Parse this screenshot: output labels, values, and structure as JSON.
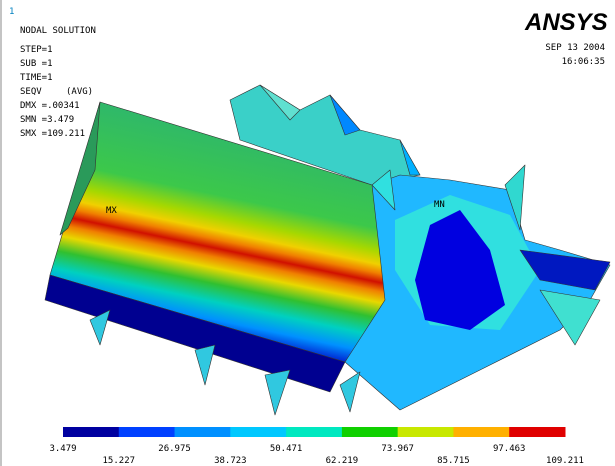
{
  "header": {
    "window_number": "1",
    "title": "NODAL SOLUTION",
    "lines": [
      "STEP=1",
      "SUB =1",
      "TIME=1"
    ],
    "result": "SEQV",
    "avg": "(AVG)",
    "stats": [
      "DMX =.00341",
      "SMN =3.479",
      "SMX =109.211"
    ],
    "logo": "ANSYS",
    "date": "SEP 13 2004",
    "time": "16:06:35"
  },
  "markers": {
    "max": "MX",
    "min": "MN"
  },
  "legend": {
    "labels": [
      "3.479",
      "15.227",
      "26.975",
      "38.723",
      "50.471",
      "62.219",
      "73.967",
      "85.715",
      "97.463",
      "109.211"
    ]
  }
}
